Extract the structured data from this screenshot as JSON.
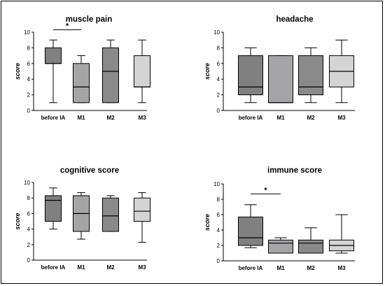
{
  "colors": {
    "before IA": "#808080",
    "M1": "#a5a5a8",
    "M2": "#8a8a8a",
    "M3": "#d4d4d4",
    "stroke": "#000000"
  },
  "chart_data": [
    {
      "type": "box",
      "title": "muscle pain",
      "ylabel": "score",
      "xlabel": "",
      "ylim": [
        0,
        10
      ],
      "yticks": [
        0,
        2,
        4,
        6,
        8,
        10
      ],
      "categories": [
        "before IA",
        "M1",
        "M2",
        "M3"
      ],
      "boxes": [
        {
          "min": 1,
          "q1": 6,
          "median": 6,
          "q3": 8,
          "max": 9
        },
        {
          "min": 1,
          "q1": 1,
          "median": 3,
          "q3": 6,
          "max": 7
        },
        {
          "min": 1,
          "q1": 1,
          "median": 5,
          "q3": 8,
          "max": 9
        },
        {
          "min": 1,
          "q1": 3,
          "median": 3,
          "q3": 7,
          "max": 9
        }
      ],
      "significance": [
        {
          "from": "before IA",
          "to": "M1",
          "label": "*",
          "at": 10.3
        }
      ]
    },
    {
      "type": "box",
      "title": "headache",
      "ylabel": "score",
      "xlabel": "",
      "ylim": [
        0,
        10
      ],
      "yticks": [
        0,
        2,
        4,
        6,
        8,
        10
      ],
      "categories": [
        "before IA",
        "M1",
        "M2",
        "M3"
      ],
      "boxes": [
        {
          "min": 1,
          "q1": 2,
          "median": 3,
          "q3": 7,
          "max": 8
        },
        {
          "min": 1,
          "q1": 1,
          "median": 1,
          "q3": 7,
          "max": 7
        },
        {
          "min": 1,
          "q1": 2,
          "median": 3,
          "q3": 7,
          "max": 8
        },
        {
          "min": 1,
          "q1": 3,
          "median": 5,
          "q3": 7,
          "max": 9
        }
      ],
      "significance": []
    },
    {
      "type": "box",
      "title": "cognitive score",
      "ylabel": "score",
      "xlabel": "",
      "ylim": [
        0,
        10
      ],
      "yticks": [
        0,
        2,
        4,
        6,
        8,
        10
      ],
      "categories": [
        "before IA",
        "M1",
        "M2",
        "M3"
      ],
      "boxes": [
        {
          "min": 4,
          "q1": 5,
          "median": 7.7,
          "q3": 8.3,
          "max": 9.3
        },
        {
          "min": 2.7,
          "q1": 3.7,
          "median": 6,
          "q3": 8.3,
          "max": 8.7
        },
        {
          "min": 3.7,
          "q1": 3.7,
          "median": 5.7,
          "q3": 8,
          "max": 8.3
        },
        {
          "min": 2.3,
          "q1": 5,
          "median": 6.3,
          "q3": 8,
          "max": 8.7
        }
      ],
      "significance": []
    },
    {
      "type": "box",
      "title": "immune score",
      "ylabel": "score",
      "xlabel": "",
      "ylim": [
        0,
        10
      ],
      "yticks": [
        0,
        2,
        4,
        6,
        8,
        10
      ],
      "categories": [
        "before IA",
        "M1",
        "M2",
        "M3"
      ],
      "boxes": [
        {
          "min": 1.7,
          "q1": 2,
          "median": 3,
          "q3": 5.7,
          "max": 7.3
        },
        {
          "min": 1,
          "q1": 1,
          "median": 2.3,
          "q3": 2.7,
          "max": 3
        },
        {
          "min": 1,
          "q1": 1,
          "median": 2.3,
          "q3": 2.7,
          "max": 4.3
        },
        {
          "min": 1,
          "q1": 1.3,
          "median": 2,
          "q3": 2.7,
          "max": 6
        }
      ],
      "significance": [
        {
          "from": "before IA",
          "to": "M1",
          "label": "*",
          "at": 8.7
        }
      ]
    }
  ]
}
